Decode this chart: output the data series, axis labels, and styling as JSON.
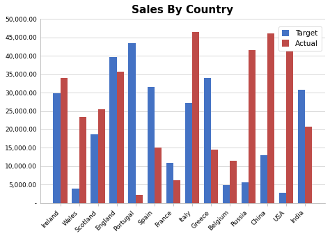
{
  "title": "Sales By Country",
  "categories": [
    "Ireland",
    "Wales",
    "Scotland",
    "England",
    "Portugal",
    "Spain",
    "France",
    "Italy",
    "Greece",
    "Belgium",
    "Russia",
    "China",
    "USA",
    "India"
  ],
  "target": [
    29800,
    4000,
    18700,
    39700,
    43500,
    31500,
    11000,
    27200,
    33900,
    4900,
    5700,
    13000,
    2700,
    30800
  ],
  "actual": [
    34000,
    23300,
    25500,
    35700,
    2200,
    15000,
    6200,
    46500,
    14500,
    11500,
    41500,
    46000,
    43500,
    20800
  ],
  "target_color": "#4472C4",
  "actual_color": "#BE4B48",
  "background_color": "#FFFFFF",
  "plot_bg_color": "#FFFFFF",
  "ylim": [
    0,
    50000
  ],
  "ytick_step": 5000,
  "legend_labels": [
    "Target",
    "Actual"
  ],
  "title_fontsize": 11,
  "tick_fontsize": 6.5,
  "legend_fontsize": 7.5
}
